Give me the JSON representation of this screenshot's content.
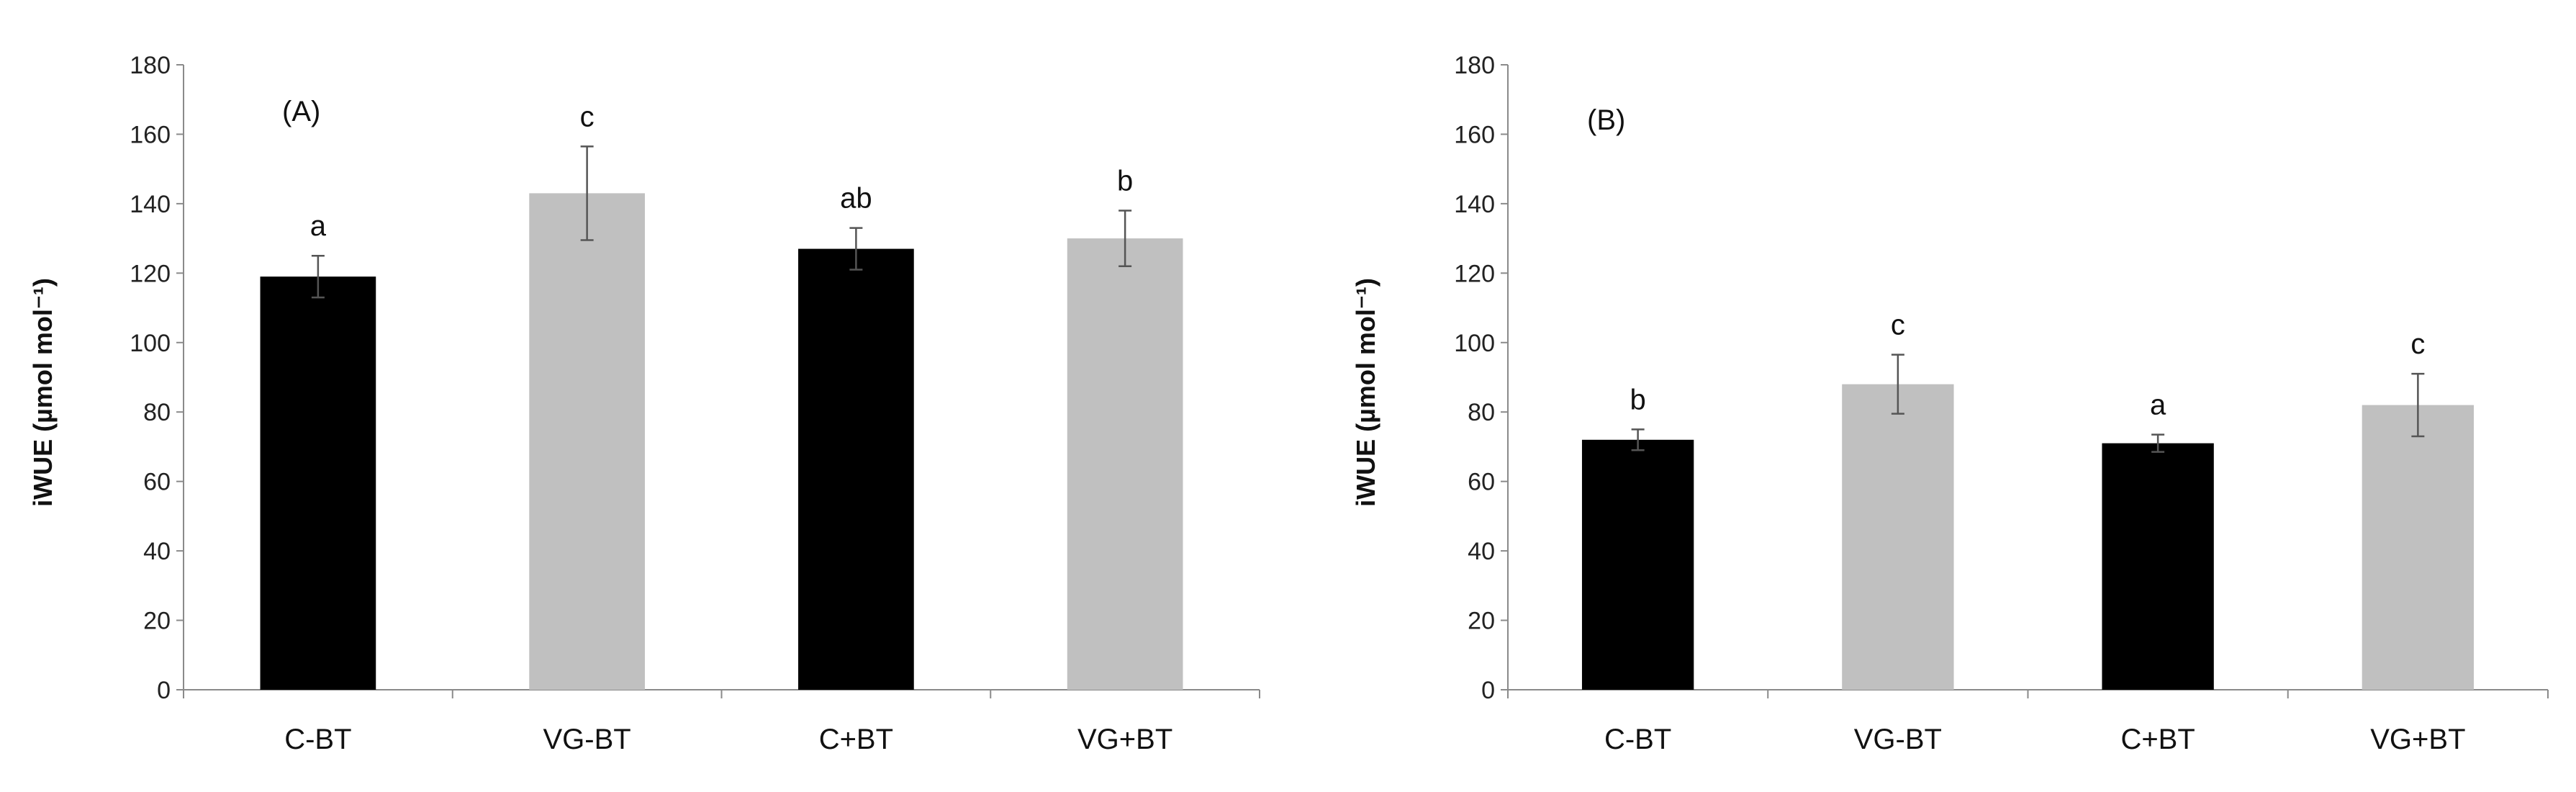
{
  "chart_data": [
    {
      "type": "bar",
      "panel_label": "(A)",
      "ylabel": "iWUE (µmol mol⁻¹)",
      "ylim": [
        0,
        180
      ],
      "yticks": [
        0,
        20,
        40,
        60,
        80,
        100,
        120,
        140,
        160,
        180
      ],
      "categories": [
        "C-BT",
        "VG-BT",
        "C+BT",
        "VG+BT"
      ],
      "values": [
        119,
        143,
        127,
        130
      ],
      "errors": [
        6,
        13.5,
        6,
        8
      ],
      "significance": [
        "a",
        "c",
        "ab",
        "b"
      ],
      "colors": [
        "#000000",
        "#c0c0c0",
        "#000000",
        "#c0c0c0"
      ]
    },
    {
      "type": "bar",
      "panel_label": "(B)",
      "ylabel": "iWUE (µmol mol⁻¹)",
      "ylim": [
        0,
        180
      ],
      "yticks": [
        0,
        20,
        40,
        60,
        80,
        100,
        120,
        140,
        160,
        180
      ],
      "categories": [
        "C-BT",
        "VG-BT",
        "C+BT",
        "VG+BT"
      ],
      "values": [
        72,
        88,
        71,
        82
      ],
      "errors": [
        3,
        8.5,
        2.5,
        9
      ],
      "significance": [
        "b",
        "c",
        "a",
        "c"
      ],
      "colors": [
        "#000000",
        "#c0c0c0",
        "#000000",
        "#c0c0c0"
      ]
    }
  ]
}
